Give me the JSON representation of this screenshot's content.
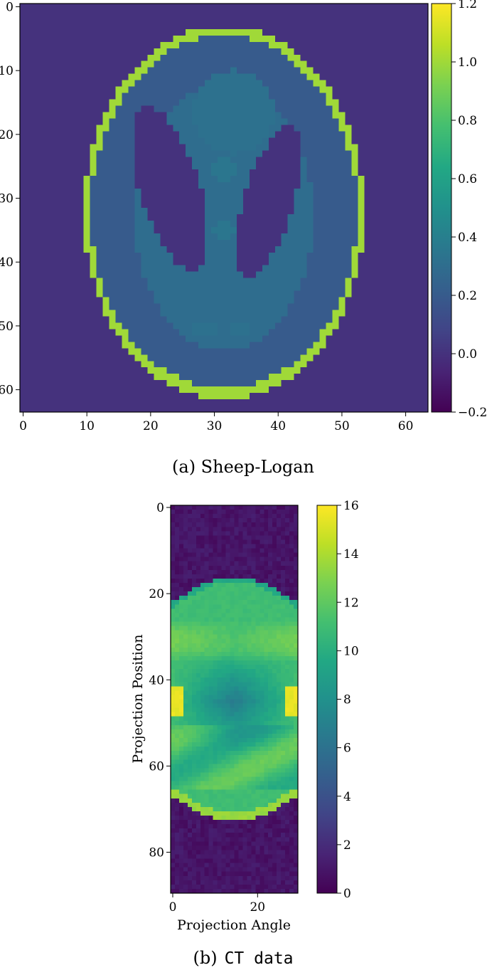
{
  "chart_data": [
    {
      "type": "heatmap",
      "caption": "(a) Sheep-Logan",
      "image_size": [
        64,
        64
      ],
      "xlim": [
        0,
        63
      ],
      "ylim": [
        63,
        0
      ],
      "x_ticks": [
        "0",
        "10",
        "20",
        "30",
        "40",
        "50",
        "60"
      ],
      "y_ticks": [
        "0",
        "10",
        "20",
        "30",
        "40",
        "50",
        "60"
      ],
      "xlabel": "",
      "ylabel": "",
      "colorbar": {
        "colormap": "viridis",
        "range": [
          -0.2,
          1.2
        ],
        "ticks": [
          "1.2",
          "1.0",
          "0.8",
          "0.6",
          "0.4",
          "0.2",
          "0.0",
          "−0.2"
        ]
      },
      "levels": {
        "background": 0.0,
        "skull": 1.0,
        "brain": 0.2,
        "central_region": 0.3,
        "dark_ellipses": 0.0
      }
    },
    {
      "type": "heatmap",
      "caption_label": "(b)",
      "caption_text": "CT data",
      "image_size": [
        30,
        90
      ],
      "xlim": [
        0,
        29
      ],
      "ylim": [
        90,
        0
      ],
      "x_ticks": [
        "0",
        "20"
      ],
      "y_ticks": [
        "0",
        "20",
        "40",
        "60",
        "80"
      ],
      "xlabel": "Projection Angle",
      "ylabel": "Projection Position",
      "colorbar": {
        "colormap": "viridis",
        "range": [
          0,
          16
        ],
        "ticks": [
          "16",
          "14",
          "12",
          "10",
          "8",
          "6",
          "4",
          "2",
          "0"
        ]
      }
    }
  ]
}
